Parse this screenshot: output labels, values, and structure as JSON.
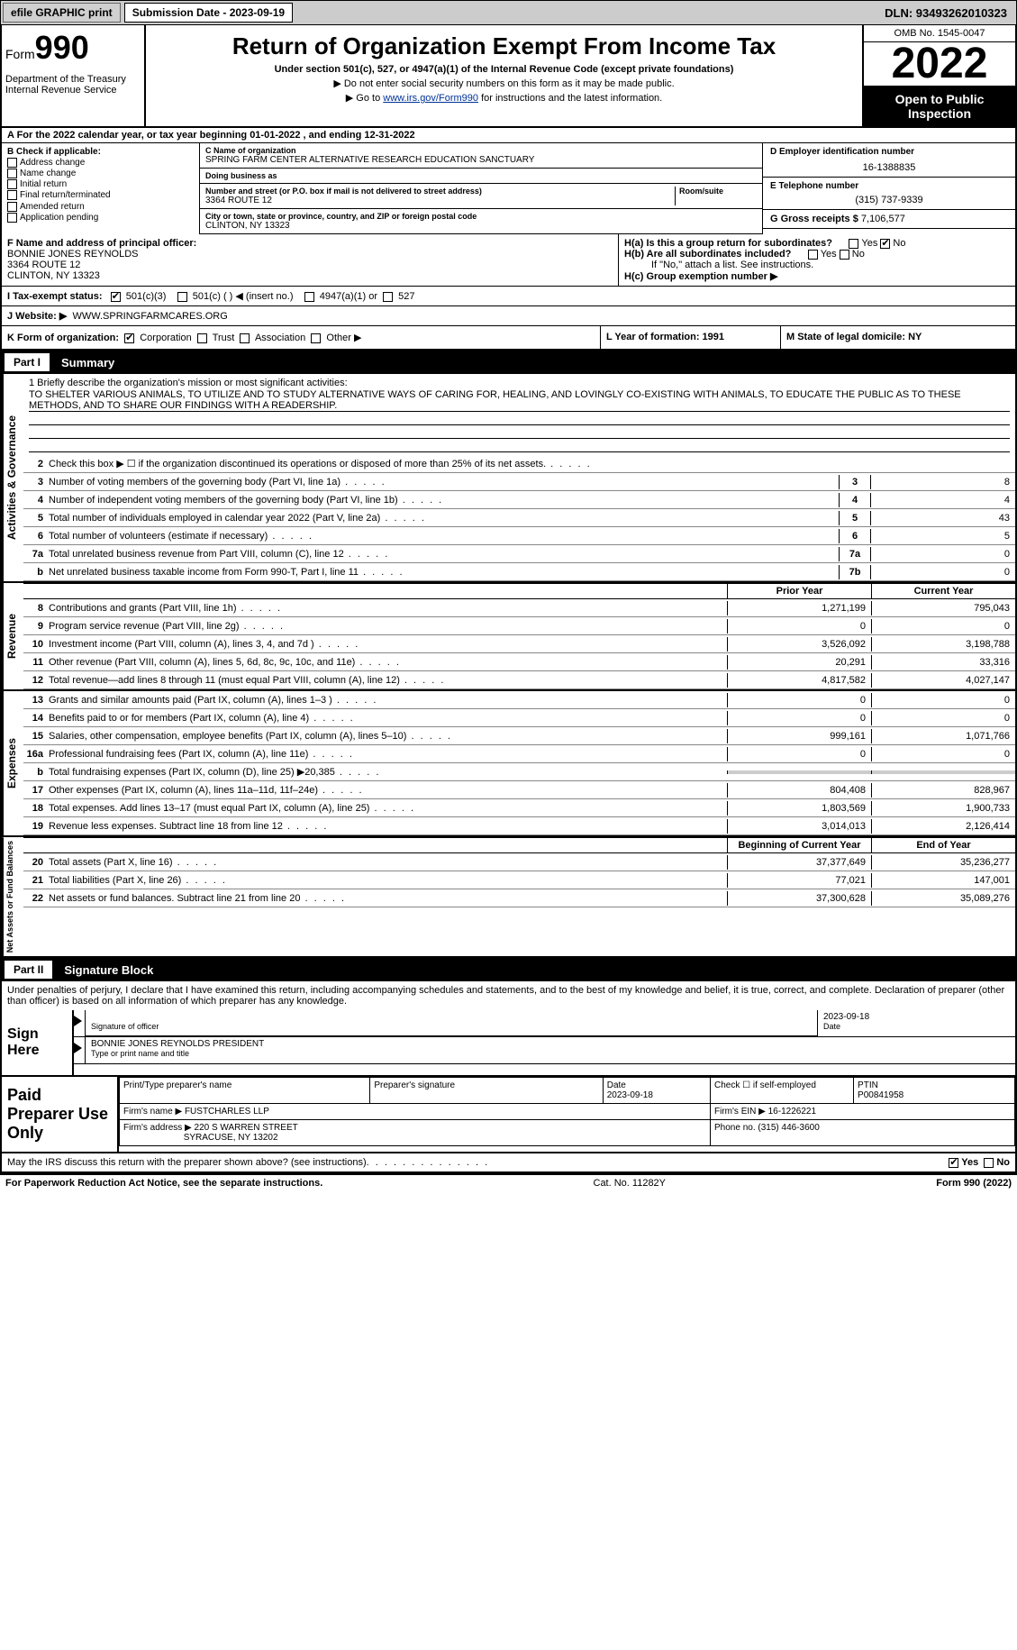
{
  "topbar": {
    "efile": "efile GRAPHIC print",
    "submission": "Submission Date - 2023-09-19",
    "dln": "DLN: 93493262010323"
  },
  "header": {
    "form_word": "Form",
    "form_num": "990",
    "title": "Return of Organization Exempt From Income Tax",
    "subtitle": "Under section 501(c), 527, or 4947(a)(1) of the Internal Revenue Code (except private foundations)",
    "note1": "▶ Do not enter social security numbers on this form as it may be made public.",
    "note2_pre": "▶ Go to ",
    "note2_link": "www.irs.gov/Form990",
    "note2_post": " for instructions and the latest information.",
    "dept": "Department of the Treasury Internal Revenue Service",
    "omb": "OMB No. 1545-0047",
    "year": "2022",
    "open": "Open to Public Inspection"
  },
  "row_a": "A For the 2022 calendar year, or tax year beginning 01-01-2022    , and ending 12-31-2022",
  "col_b": {
    "hdr": "B Check if applicable:",
    "items": [
      "Address change",
      "Name change",
      "Initial return",
      "Final return/terminated",
      "Amended return",
      "Application pending"
    ]
  },
  "col_c": {
    "name_lbl": "C Name of organization",
    "name": "SPRING FARM CENTER ALTERNATIVE RESEARCH EDUCATION SANCTUARY",
    "dba_lbl": "Doing business as",
    "addr_lbl": "Number and street (or P.O. box if mail is not delivered to street address)",
    "room_lbl": "Room/suite",
    "addr": "3364 ROUTE 12",
    "city_lbl": "City or town, state or province, country, and ZIP or foreign postal code",
    "city": "CLINTON, NY  13323"
  },
  "col_d": {
    "ein_lbl": "D Employer identification number",
    "ein": "16-1388835",
    "tel_lbl": "E Telephone number",
    "tel": "(315) 737-9339",
    "gross_lbl": "G Gross receipts $",
    "gross": "7,106,577"
  },
  "row_f": {
    "lbl": "F  Name and address of principal officer:",
    "name": "BONNIE JONES REYNOLDS",
    "addr1": "3364 ROUTE 12",
    "addr2": "CLINTON, NY  13323",
    "ha": "H(a)  Is this a group return for subordinates?",
    "hb": "H(b)  Are all subordinates included?",
    "hb_note": "If \"No,\" attach a list. See instructions.",
    "hc": "H(c)  Group exemption number ▶"
  },
  "row_i": {
    "lbl": "I   Tax-exempt status:",
    "o1": "501(c)(3)",
    "o2": "501(c) (  ) ◀ (insert no.)",
    "o3": "4947(a)(1) or",
    "o4": "527"
  },
  "row_j": {
    "lbl": "J   Website: ▶",
    "val": "WWW.SPRINGFARMCARES.ORG"
  },
  "row_k": {
    "k_lbl": "K Form of organization:",
    "k1": "Corporation",
    "k2": "Trust",
    "k3": "Association",
    "k4": "Other ▶",
    "l": "L Year of formation: 1991",
    "m": "M State of legal domicile: NY"
  },
  "parts": {
    "p1": "Part I",
    "p1t": "Summary",
    "p2": "Part II",
    "p2t": "Signature Block"
  },
  "side": {
    "s1": "Activities & Governance",
    "s2": "Revenue",
    "s3": "Expenses",
    "s4": "Net Assets or Fund Balances"
  },
  "mission": {
    "lbl": "1   Briefly describe the organization's mission or most significant activities:",
    "txt": "TO SHELTER VARIOUS ANIMALS, TO UTILIZE AND TO STUDY ALTERNATIVE WAYS OF CARING FOR, HEALING, AND LOVINGLY CO-EXISTING WITH ANIMALS, TO EDUCATE THE PUBLIC AS TO THESE METHODS, AND TO SHARE OUR FINDINGS WITH A READERSHIP."
  },
  "lines_ag": [
    {
      "n": "2",
      "d": "Check this box ▶ ☐  if the organization discontinued its operations or disposed of more than 25% of its net assets.",
      "b": "",
      "v": ""
    },
    {
      "n": "3",
      "d": "Number of voting members of the governing body (Part VI, line 1a)",
      "b": "3",
      "v": "8"
    },
    {
      "n": "4",
      "d": "Number of independent voting members of the governing body (Part VI, line 1b)",
      "b": "4",
      "v": "4"
    },
    {
      "n": "5",
      "d": "Total number of individuals employed in calendar year 2022 (Part V, line 2a)",
      "b": "5",
      "v": "43"
    },
    {
      "n": "6",
      "d": "Total number of volunteers (estimate if necessary)",
      "b": "6",
      "v": "5"
    },
    {
      "n": "7a",
      "d": "Total unrelated business revenue from Part VIII, column (C), line 12",
      "b": "7a",
      "v": "0"
    },
    {
      "n": "b",
      "d": "Net unrelated business taxable income from Form 990-T, Part I, line 11",
      "b": "7b",
      "v": "0"
    }
  ],
  "hdrs": {
    "py": "Prior Year",
    "cy": "Current Year",
    "by": "Beginning of Current Year",
    "ey": "End of Year"
  },
  "lines_rev": [
    {
      "n": "8",
      "d": "Contributions and grants (Part VIII, line 1h)",
      "p": "1,271,199",
      "c": "795,043"
    },
    {
      "n": "9",
      "d": "Program service revenue (Part VIII, line 2g)",
      "p": "0",
      "c": "0"
    },
    {
      "n": "10",
      "d": "Investment income (Part VIII, column (A), lines 3, 4, and 7d )",
      "p": "3,526,092",
      "c": "3,198,788"
    },
    {
      "n": "11",
      "d": "Other revenue (Part VIII, column (A), lines 5, 6d, 8c, 9c, 10c, and 11e)",
      "p": "20,291",
      "c": "33,316"
    },
    {
      "n": "12",
      "d": "Total revenue—add lines 8 through 11 (must equal Part VIII, column (A), line 12)",
      "p": "4,817,582",
      "c": "4,027,147"
    }
  ],
  "lines_exp": [
    {
      "n": "13",
      "d": "Grants and similar amounts paid (Part IX, column (A), lines 1–3 )",
      "p": "0",
      "c": "0"
    },
    {
      "n": "14",
      "d": "Benefits paid to or for members (Part IX, column (A), line 4)",
      "p": "0",
      "c": "0"
    },
    {
      "n": "15",
      "d": "Salaries, other compensation, employee benefits (Part IX, column (A), lines 5–10)",
      "p": "999,161",
      "c": "1,071,766"
    },
    {
      "n": "16a",
      "d": "Professional fundraising fees (Part IX, column (A), line 11e)",
      "p": "0",
      "c": "0"
    },
    {
      "n": "b",
      "d": "Total fundraising expenses (Part IX, column (D), line 25) ▶20,385",
      "p": "",
      "c": "",
      "grey": true
    },
    {
      "n": "17",
      "d": "Other expenses (Part IX, column (A), lines 11a–11d, 11f–24e)",
      "p": "804,408",
      "c": "828,967"
    },
    {
      "n": "18",
      "d": "Total expenses. Add lines 13–17 (must equal Part IX, column (A), line 25)",
      "p": "1,803,569",
      "c": "1,900,733"
    },
    {
      "n": "19",
      "d": "Revenue less expenses. Subtract line 18 from line 12",
      "p": "3,014,013",
      "c": "2,126,414"
    }
  ],
  "lines_net": [
    {
      "n": "20",
      "d": "Total assets (Part X, line 16)",
      "p": "37,377,649",
      "c": "35,236,277"
    },
    {
      "n": "21",
      "d": "Total liabilities (Part X, line 26)",
      "p": "77,021",
      "c": "147,001"
    },
    {
      "n": "22",
      "d": "Net assets or fund balances. Subtract line 21 from line 20",
      "p": "37,300,628",
      "c": "35,089,276"
    }
  ],
  "sig": {
    "declare": "Under penalties of perjury, I declare that I have examined this return, including accompanying schedules and statements, and to the best of my knowledge and belief, it is true, correct, and complete. Declaration of preparer (other than officer) is based on all information of which preparer has any knowledge.",
    "sign_here": "Sign Here",
    "sig_of": "Signature of officer",
    "date": "Date",
    "date_v": "2023-09-18",
    "name": "BONNIE JONES REYNOLDS  PRESIDENT",
    "name_lbl": "Type or print name and title"
  },
  "prep": {
    "lbl": "Paid Preparer Use Only",
    "h1": "Print/Type preparer's name",
    "h2": "Preparer's signature",
    "h3": "Date",
    "h3v": "2023-09-18",
    "h4": "Check ☐ if self-employed",
    "h5": "PTIN",
    "h5v": "P00841958",
    "firm_lbl": "Firm's name    ▶",
    "firm": "FUSTCHARLES LLP",
    "ein_lbl": "Firm's EIN ▶",
    "ein": "16-1226221",
    "addr_lbl": "Firm's address ▶",
    "addr1": "220 S WARREN STREET",
    "addr2": "SYRACUSE, NY  13202",
    "ph_lbl": "Phone no.",
    "ph": "(315) 446-3600"
  },
  "footer": {
    "q": "May the IRS discuss this return with the preparer shown above? (see instructions)",
    "yes": "Yes",
    "no": "No",
    "pra": "For Paperwork Reduction Act Notice, see the separate instructions.",
    "cat": "Cat. No. 11282Y",
    "form": "Form 990 (2022)"
  }
}
